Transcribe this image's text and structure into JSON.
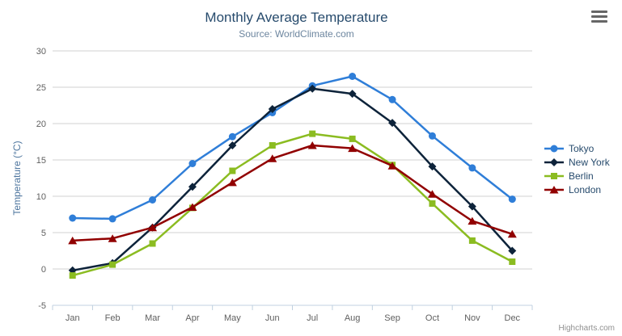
{
  "header": {
    "title": "Monthly Average Temperature",
    "subtitle": "Source: WorldClimate.com"
  },
  "credits": {
    "label": "Highcharts.com"
  },
  "icons": {
    "export_menu": "hamburger-menu-icon"
  },
  "chart_data": {
    "type": "line",
    "title": "Monthly Average Temperature",
    "subtitle": "Source: WorldClimate.com",
    "categories": [
      "Jan",
      "Feb",
      "Mar",
      "Apr",
      "May",
      "Jun",
      "Jul",
      "Aug",
      "Sep",
      "Oct",
      "Nov",
      "Dec"
    ],
    "xlabel": "",
    "ylabel": "Temperature (°C)",
    "ylim": [
      -5,
      30
    ],
    "ytick_step": 5,
    "grid": true,
    "grid_color": "#d0d0d0",
    "axis_line_color": "#c0d0e0",
    "legend_position": "right",
    "series": [
      {
        "name": "Tokyo",
        "color": "#2f7ed8",
        "marker": "circle",
        "values": [
          7.0,
          6.9,
          9.5,
          14.5,
          18.2,
          21.5,
          25.2,
          26.5,
          23.3,
          18.3,
          13.9,
          9.6
        ]
      },
      {
        "name": "New York",
        "color": "#0d233a",
        "marker": "diamond",
        "values": [
          -0.2,
          0.8,
          5.7,
          11.3,
          17.0,
          22.0,
          24.8,
          24.1,
          20.1,
          14.1,
          8.6,
          2.5
        ]
      },
      {
        "name": "Berlin",
        "color": "#8bbc21",
        "marker": "square",
        "values": [
          -0.9,
          0.6,
          3.5,
          8.4,
          13.5,
          17.0,
          18.6,
          17.9,
          14.3,
          9.0,
          3.9,
          1.0
        ]
      },
      {
        "name": "London",
        "color": "#910000",
        "marker": "triangle",
        "values": [
          3.9,
          4.2,
          5.7,
          8.5,
          11.9,
          15.2,
          17.0,
          16.6,
          14.2,
          10.3,
          6.6,
          4.8
        ]
      }
    ]
  }
}
